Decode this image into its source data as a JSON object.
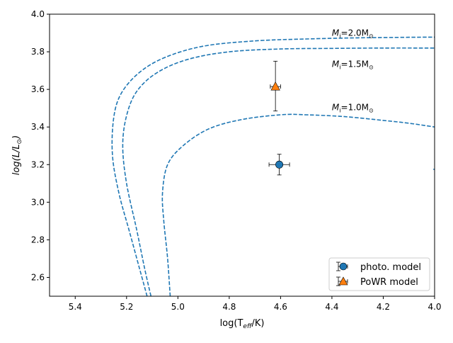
{
  "chart_data": {
    "type": "line",
    "xlabel_main": "log(T",
    "xlabel_sub": "eff",
    "xlabel_tail": "/K)",
    "ylabel_main": "log(L/L",
    "ylabel_sub": "⊙",
    "ylabel_tail": ")",
    "xlim": [
      5.5,
      4.0
    ],
    "ylim": [
      2.5,
      4.0
    ],
    "x_inverted": true,
    "grid": false,
    "legend_position": "lower-right",
    "x_ticks": [
      {
        "value": 5.4,
        "label": "5.4"
      },
      {
        "value": 5.2,
        "label": "5.2"
      },
      {
        "value": 5.0,
        "label": "5.0"
      },
      {
        "value": 4.8,
        "label": "4.8"
      },
      {
        "value": 4.6,
        "label": "4.6"
      },
      {
        "value": 4.4,
        "label": "4.4"
      },
      {
        "value": 4.2,
        "label": "4.2"
      },
      {
        "value": 4.0,
        "label": "4.0"
      }
    ],
    "y_ticks": [
      {
        "value": 2.6,
        "label": "2.6"
      },
      {
        "value": 2.8,
        "label": "2.8"
      },
      {
        "value": 3.0,
        "label": "3.0"
      },
      {
        "value": 3.2,
        "label": "3.2"
      },
      {
        "value": 3.4,
        "label": "3.4"
      },
      {
        "value": 3.6,
        "label": "3.6"
      },
      {
        "value": 3.8,
        "label": "3.8"
      },
      {
        "value": 4.0,
        "label": "4.0"
      }
    ],
    "tracks": [
      {
        "label_main": "M",
        "label_sub": "i",
        "label_value": "=2.0M",
        "label_sun": "⊙",
        "label_at": [
          4.4,
          3.9
        ],
        "color": "#1f77b4",
        "points": [
          [
            5.12,
            2.5
          ],
          [
            5.15,
            2.65
          ],
          [
            5.19,
            2.85
          ],
          [
            5.23,
            3.05
          ],
          [
            5.255,
            3.25
          ],
          [
            5.25,
            3.45
          ],
          [
            5.22,
            3.58
          ],
          [
            5.15,
            3.69
          ],
          [
            5.05,
            3.77
          ],
          [
            4.9,
            3.83
          ],
          [
            4.7,
            3.858
          ],
          [
            4.5,
            3.868
          ],
          [
            4.3,
            3.874
          ],
          [
            4.1,
            3.877
          ],
          [
            4.0,
            3.878
          ]
        ]
      },
      {
        "label_main": "M",
        "label_sub": "i",
        "label_value": "=1.5M",
        "label_sun": "⊙",
        "label_at": [
          4.4,
          3.735
        ],
        "color": "#1f77b4",
        "points": [
          [
            5.105,
            2.5
          ],
          [
            5.13,
            2.65
          ],
          [
            5.16,
            2.85
          ],
          [
            5.2,
            3.1
          ],
          [
            5.215,
            3.3
          ],
          [
            5.2,
            3.46
          ],
          [
            5.16,
            3.59
          ],
          [
            5.08,
            3.69
          ],
          [
            4.96,
            3.76
          ],
          [
            4.8,
            3.8
          ],
          [
            4.6,
            3.815
          ],
          [
            4.4,
            3.818
          ],
          [
            4.2,
            3.82
          ],
          [
            4.0,
            3.82
          ]
        ]
      },
      {
        "label_main": "M",
        "label_sub": "i",
        "label_value": "=1.0M",
        "label_sun": "⊙",
        "label_at": [
          4.4,
          3.505
        ],
        "color": "#1f77b4",
        "points": [
          [
            5.03,
            2.5
          ],
          [
            5.04,
            2.7
          ],
          [
            5.055,
            2.9
          ],
          [
            5.06,
            3.05
          ],
          [
            5.04,
            3.2
          ],
          [
            4.98,
            3.3
          ],
          [
            4.88,
            3.39
          ],
          [
            4.75,
            3.44
          ],
          [
            4.6,
            3.465
          ],
          [
            4.5,
            3.465
          ],
          [
            4.35,
            3.455
          ],
          [
            4.2,
            3.435
          ],
          [
            4.1,
            3.42
          ],
          [
            4.0,
            3.4
          ]
        ]
      }
    ],
    "series": [
      {
        "name": "photo. model",
        "marker": "circle",
        "color": "#1f77b4",
        "x": 4.605,
        "y": 3.2,
        "xerr": 0.04,
        "yerr_low": 0.055,
        "yerr_high": 0.055
      },
      {
        "name": "PoWR model",
        "marker": "triangle",
        "color": "#ff7f0e",
        "x": 4.62,
        "y": 3.615,
        "xerr": 0.02,
        "yerr_low": 0.13,
        "yerr_high": 0.135
      }
    ]
  }
}
